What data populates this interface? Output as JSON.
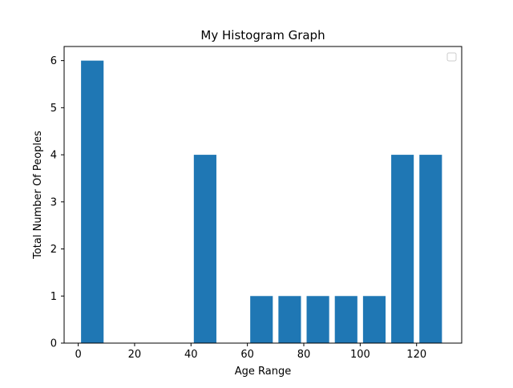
{
  "chart_data": {
    "type": "bar",
    "title": "My Histogram Graph",
    "xlabel": "Age Range",
    "ylabel": "Total Number Of Peoples",
    "xlim": [
      -5,
      136
    ],
    "ylim": [
      0,
      6.3
    ],
    "xticks": [
      0,
      20,
      40,
      60,
      80,
      100,
      120
    ],
    "yticks": [
      0,
      1,
      2,
      3,
      4,
      5,
      6
    ],
    "bar_width": 8,
    "bars": [
      {
        "x": 5,
        "value": 6
      },
      {
        "x": 45,
        "value": 4
      },
      {
        "x": 65,
        "value": 1
      },
      {
        "x": 75,
        "value": 1
      },
      {
        "x": 85,
        "value": 1
      },
      {
        "x": 95,
        "value": 1
      },
      {
        "x": 105,
        "value": 1
      },
      {
        "x": 115,
        "value": 4
      },
      {
        "x": 125,
        "value": 4
      }
    ],
    "bar_color": "#1f77b4",
    "legend": {
      "placement": "top-right",
      "entries": []
    },
    "grid": false
  }
}
